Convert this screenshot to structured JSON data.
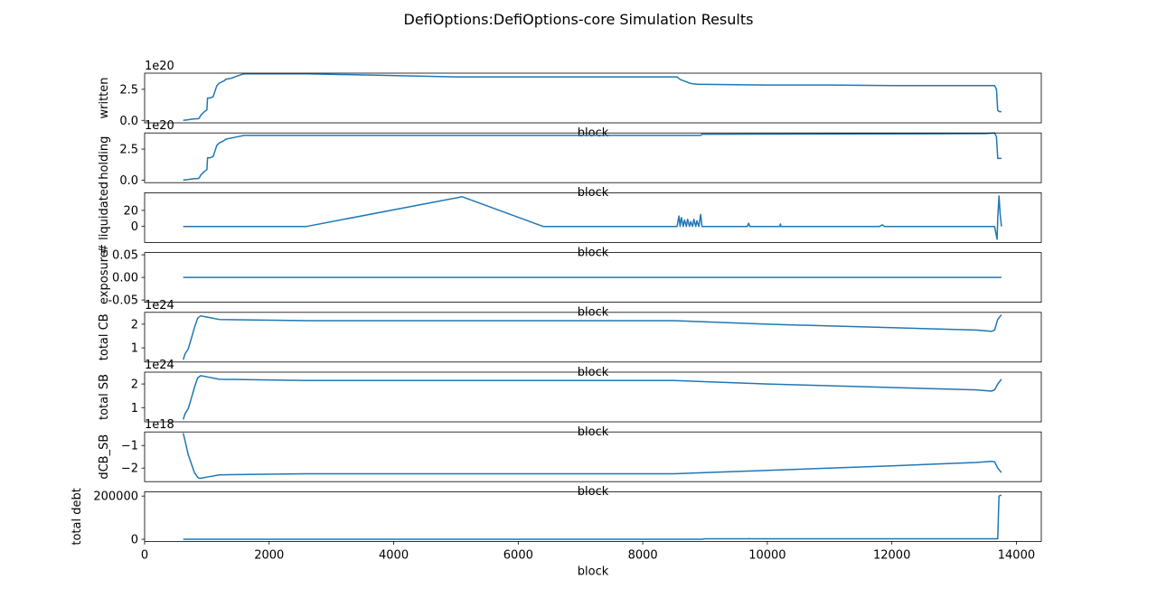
{
  "title": "DefiOptions:DefiOptions-core Simulation Results",
  "line_color": "#1f77b4",
  "chart_data": [
    {
      "type": "line",
      "ylabel": "written",
      "xlabel": "block",
      "offset_text": "1e20",
      "xlim": [
        0,
        14400
      ],
      "ylim": [
        -0.2,
        3.8
      ],
      "yticks": [
        0,
        2.5
      ],
      "ytick_labels": [
        "0.0",
        "2.5"
      ],
      "x": [
        620,
        700,
        760,
        800,
        840,
        870,
        880,
        900,
        960,
        1000,
        1010,
        1050,
        1100,
        1160,
        1200,
        1280,
        1300,
        1400,
        1450,
        1500,
        1600,
        2600,
        5000,
        8550,
        8600,
        8650,
        8700,
        8750,
        8800,
        8900,
        8950,
        9000,
        10000,
        11000,
        12000,
        13000,
        13300,
        13650,
        13680,
        13700,
        13730,
        13760
      ],
      "y": [
        0,
        0.05,
        0.1,
        0.12,
        0.13,
        0.15,
        0.2,
        0.4,
        0.7,
        0.85,
        1.8,
        1.8,
        1.9,
        2.8,
        3.0,
        3.2,
        3.3,
        3.4,
        3.5,
        3.6,
        3.75,
        3.75,
        3.5,
        3.5,
        3.3,
        3.2,
        3.1,
        3.0,
        2.95,
        2.9,
        2.9,
        2.9,
        2.85,
        2.85,
        2.8,
        2.8,
        2.8,
        2.8,
        2.5,
        0.8,
        0.7,
        0.7
      ]
    },
    {
      "type": "line",
      "ylabel": "holding",
      "xlabel": "block",
      "offset_text": "1e20",
      "xlim": [
        0,
        14400
      ],
      "ylim": [
        -0.2,
        3.8
      ],
      "yticks": [
        0,
        2.5
      ],
      "ytick_labels": [
        "0.0",
        "2.5"
      ],
      "x": [
        620,
        700,
        760,
        800,
        840,
        870,
        880,
        900,
        960,
        1000,
        1010,
        1050,
        1100,
        1160,
        1200,
        1280,
        1300,
        1400,
        1500,
        1600,
        8930,
        8950,
        13500,
        13650,
        13680,
        13700,
        13760
      ],
      "y": [
        0,
        0.05,
        0.1,
        0.12,
        0.13,
        0.15,
        0.2,
        0.4,
        0.7,
        0.85,
        1.8,
        1.8,
        1.9,
        2.8,
        3.0,
        3.2,
        3.3,
        3.4,
        3.5,
        3.6,
        3.6,
        3.7,
        3.75,
        3.8,
        3.5,
        1.75,
        1.75
      ]
    },
    {
      "type": "line",
      "ylabel": "# liquidated",
      "xlabel": "block",
      "offset_text": "",
      "xlim": [
        0,
        14400
      ],
      "ylim": [
        -20,
        42
      ],
      "yticks": [
        0,
        20
      ],
      "ytick_labels": [
        "0",
        "20"
      ],
      "x": [
        620,
        2600,
        5100,
        6400,
        8550,
        8580,
        8600,
        8620,
        8650,
        8670,
        8700,
        8720,
        8750,
        8770,
        8800,
        8820,
        8850,
        8870,
        8900,
        8930,
        8950,
        8960,
        9000,
        9680,
        9700,
        9720,
        9740,
        10200,
        10210,
        10220,
        10900,
        11000,
        11100,
        11200,
        11500,
        11800,
        11850,
        11880,
        13650,
        13690,
        13700,
        13720,
        13740,
        13760
      ],
      "y": [
        0,
        0,
        37,
        0,
        0,
        13,
        0,
        11,
        0,
        8,
        0,
        9,
        0,
        6,
        0,
        9,
        0,
        7,
        0,
        15,
        0,
        0,
        0,
        0,
        4,
        0,
        0,
        0,
        3,
        0,
        0,
        0,
        0,
        0,
        0,
        0,
        2,
        0,
        0,
        -16,
        10,
        38,
        15,
        0
      ]
    },
    {
      "type": "line",
      "ylabel": "exposure",
      "xlabel": "block",
      "offset_text": "",
      "xlim": [
        0,
        14400
      ],
      "ylim": [
        -0.055,
        0.055
      ],
      "yticks": [
        -0.05,
        0,
        0.05
      ],
      "ytick_labels": [
        "-0.05",
        "0.00",
        "0.05"
      ],
      "x": [
        620,
        13760
      ],
      "y": [
        0,
        0
      ]
    },
    {
      "type": "line",
      "ylabel": "total CB",
      "xlabel": "block",
      "offset_text": "1e24",
      "xlim": [
        0,
        14400
      ],
      "ylim": [
        0.4,
        2.5
      ],
      "yticks": [
        1,
        2
      ],
      "ytick_labels": [
        "1",
        "2"
      ],
      "x": [
        620,
        650,
        700,
        750,
        800,
        850,
        900,
        1000,
        1200,
        2600,
        8500,
        10000,
        12000,
        13350,
        13600,
        13650,
        13700,
        13760
      ],
      "y": [
        0.5,
        0.75,
        0.95,
        1.4,
        1.85,
        2.25,
        2.35,
        2.3,
        2.2,
        2.15,
        2.15,
        2.0,
        1.85,
        1.75,
        1.7,
        1.75,
        2.2,
        2.4
      ]
    },
    {
      "type": "line",
      "ylabel": "total SB",
      "xlabel": "block",
      "offset_text": "1e24",
      "xlim": [
        0,
        14400
      ],
      "ylim": [
        0.4,
        2.5
      ],
      "yticks": [
        1,
        2
      ],
      "ytick_labels": [
        "1",
        "2"
      ],
      "x": [
        620,
        650,
        700,
        750,
        800,
        850,
        900,
        1000,
        1200,
        2600,
        8500,
        10000,
        12000,
        13350,
        13600,
        13650,
        13700,
        13760
      ],
      "y": [
        0.5,
        0.75,
        0.95,
        1.4,
        1.85,
        2.25,
        2.35,
        2.3,
        2.2,
        2.15,
        2.15,
        2.0,
        1.85,
        1.75,
        1.7,
        1.75,
        2.0,
        2.2
      ]
    },
    {
      "type": "line",
      "ylabel": "dCB_SB",
      "xlabel": "block",
      "offset_text": "1e18",
      "xlim": [
        0,
        14400
      ],
      "ylim": [
        -2.6,
        -0.4
      ],
      "yticks": [
        -2,
        -1
      ],
      "ytick_labels": [
        "−2",
        "−1"
      ],
      "x": [
        620,
        650,
        700,
        800,
        850,
        870,
        900,
        1000,
        1200,
        2600,
        8500,
        10000,
        12000,
        13350,
        13600,
        13650,
        13700,
        13760
      ],
      "y": [
        -0.45,
        -0.8,
        -1.4,
        -2.2,
        -2.4,
        -2.45,
        -2.45,
        -2.4,
        -2.3,
        -2.25,
        -2.25,
        -2.1,
        -1.9,
        -1.75,
        -1.7,
        -1.72,
        -2.0,
        -2.2
      ]
    },
    {
      "type": "line",
      "ylabel": "total debt",
      "xlabel": "block",
      "offset_text": "",
      "xlim": [
        0,
        14400
      ],
      "ylim": [
        -10000,
        220000
      ],
      "yticks": [
        0,
        200000
      ],
      "ytick_labels": [
        "0",
        "200000"
      ],
      "xticks": [
        0,
        2000,
        4000,
        6000,
        8000,
        10000,
        12000,
        14000
      ],
      "xtick_labels": [
        "0",
        "2000",
        "4000",
        "6000",
        "8000",
        "10000",
        "12000",
        "14000"
      ],
      "x": [
        620,
        8950,
        9000,
        9700,
        9710,
        9720,
        13700,
        13720,
        13760
      ],
      "y": [
        0,
        0,
        2000,
        2000,
        4000,
        2000,
        2000,
        200000,
        205000
      ]
    }
  ]
}
